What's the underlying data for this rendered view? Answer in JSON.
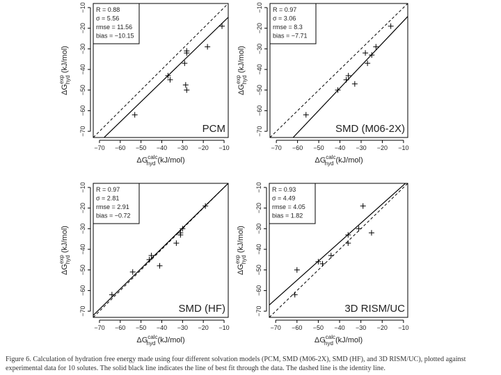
{
  "figure": {
    "caption": "Figure 6. Calculation of hydration free energy made using four different solvation models (PCM, SMD (M06-2X), SMD (HF), and 3D RISM/UC), plotted against experimental data for 10 solutes. The solid black line indicates the line of best fit through the data. The dashed line is the identity line.",
    "text_color": "#222222",
    "line_color": "#000000"
  },
  "chart_data": [
    {
      "type": "scatter",
      "name": "PCM",
      "label": "PCM",
      "xlabel": "ΔG calc hyd (kJ/mol)",
      "ylabel": "ΔG exp hyd (kJ/mol)",
      "xlabel_main": "ΔG",
      "xlabel_sup": "calc",
      "xlabel_sub": "hyd",
      "xlabel_unit": "(kJ/mol)",
      "ylabel_main": "ΔG",
      "ylabel_sup": "exp",
      "ylabel_sub": "hyd",
      "ylabel_unit": "(kJ/mol)",
      "xlim": [
        -73,
        -8
      ],
      "ylim": [
        -73,
        -8
      ],
      "xticks": [
        -70,
        -60,
        -50,
        -40,
        -30,
        -20,
        -10
      ],
      "yticks": [
        -70,
        -60,
        -50,
        -40,
        -30,
        -20,
        -10
      ],
      "stats": [
        "R = 0.88",
        "σ = 5.56",
        "rmse = 11.56",
        "bias = −10.15"
      ],
      "points": [
        {
          "x": -53,
          "y": -62
        },
        {
          "x": -36,
          "y": -45
        },
        {
          "x": -37,
          "y": -43
        },
        {
          "x": -28,
          "y": -50
        },
        {
          "x": -28.5,
          "y": -47.5
        },
        {
          "x": -29,
          "y": -37
        },
        {
          "x": -28,
          "y": -32
        },
        {
          "x": -28,
          "y": -31
        },
        {
          "x": -18,
          "y": -29
        },
        {
          "x": -11,
          "y": -19
        }
      ],
      "fit": [
        [
          -73,
          -78.1
        ],
        [
          -8,
          -14.7
        ]
      ]
    },
    {
      "type": "scatter",
      "name": "SMD (M06-2X)",
      "label": "SMD (M06-2X)",
      "xlabel": "ΔG calc hyd (kJ/mol)",
      "ylabel": "ΔG exp hyd (kJ/mol)",
      "xlabel_main": "ΔG",
      "xlabel_sup": "calc",
      "xlabel_sub": "hyd",
      "xlabel_unit": "(kJ/mol)",
      "ylabel_main": "ΔG",
      "ylabel_sup": "exp",
      "ylabel_sub": "hyd",
      "ylabel_unit": "(kJ/mol)",
      "xlim": [
        -73,
        -8
      ],
      "ylim": [
        -73,
        -8
      ],
      "xticks": [
        -70,
        -60,
        -50,
        -40,
        -30,
        -20,
        -10
      ],
      "yticks": [
        -70,
        -60,
        -50,
        -40,
        -30,
        -20,
        -10
      ],
      "stats": [
        "R = 0.97",
        "σ = 3.06",
        "rmse = 8.3",
        "bias = −7.71"
      ],
      "points": [
        {
          "x": -56,
          "y": -62
        },
        {
          "x": -41,
          "y": -50
        },
        {
          "x": -37,
          "y": -45
        },
        {
          "x": -36,
          "y": -43
        },
        {
          "x": -33,
          "y": -47
        },
        {
          "x": -28,
          "y": -32
        },
        {
          "x": -27,
          "y": -37
        },
        {
          "x": -25,
          "y": -33
        },
        {
          "x": -23,
          "y": -29
        },
        {
          "x": -16,
          "y": -19
        }
      ],
      "fit": [
        [
          -63,
          -74
        ],
        [
          -8,
          -14.3
        ]
      ]
    },
    {
      "type": "scatter",
      "name": "SMD (HF)",
      "label": "SMD (HF)",
      "xlabel": "ΔG calc hyd (kJ/mol)",
      "ylabel": "ΔG exp hyd (kJ/mol)",
      "xlabel_main": "ΔG",
      "xlabel_sup": "calc",
      "xlabel_sub": "hyd",
      "xlabel_unit": "(kJ/mol)",
      "ylabel_main": "ΔG",
      "ylabel_sup": "exp",
      "ylabel_sub": "hyd",
      "ylabel_unit": "(kJ/mol)",
      "xlim": [
        -73,
        -8
      ],
      "ylim": [
        -73,
        -8
      ],
      "xticks": [
        -70,
        -60,
        -50,
        -40,
        -30,
        -20,
        -10
      ],
      "yticks": [
        -70,
        -60,
        -50,
        -40,
        -30,
        -20,
        -10
      ],
      "stats": [
        "R = 0.97",
        "σ = 2.81",
        "rmse = 2.91",
        "bias = −0.72"
      ],
      "points": [
        {
          "x": -64,
          "y": -62
        },
        {
          "x": -54,
          "y": -51
        },
        {
          "x": -46,
          "y": -45
        },
        {
          "x": -45,
          "y": -43
        },
        {
          "x": -41,
          "y": -48
        },
        {
          "x": -33,
          "y": -37
        },
        {
          "x": -31,
          "y": -33
        },
        {
          "x": -31,
          "y": -32
        },
        {
          "x": -30,
          "y": -30
        },
        {
          "x": -19,
          "y": -19
        }
      ],
      "fit": [
        [
          -73,
          -72
        ],
        [
          -8,
          -8
        ]
      ]
    },
    {
      "type": "scatter",
      "name": "3D RISM/UC",
      "label": "3D RISM/UC",
      "xlabel": "ΔG calc hyd (kJ/mol)",
      "ylabel": "ΔG exp hyd (kJ/mol)",
      "xlabel_main": "ΔG",
      "xlabel_sup": "calc",
      "xlabel_sub": "hyd",
      "xlabel_unit": "(kJ/mol)",
      "ylabel_main": "ΔG",
      "ylabel_sup": "exp",
      "ylabel_sub": "hyd",
      "ylabel_unit": "(kJ/mol)",
      "xlim": [
        -73,
        -8
      ],
      "ylim": [
        -73,
        -8
      ],
      "xticks": [
        -70,
        -60,
        -50,
        -40,
        -30,
        -20,
        -10
      ],
      "yticks": [
        -70,
        -60,
        -50,
        -40,
        -30,
        -20,
        -10
      ],
      "stats": [
        "R = 0.93",
        "σ = 4.49",
        "rmse = 4.05",
        "bias = 1.82"
      ],
      "points": [
        {
          "x": -61,
          "y": -62
        },
        {
          "x": -60,
          "y": -50
        },
        {
          "x": -50,
          "y": -46
        },
        {
          "x": -48,
          "y": -47
        },
        {
          "x": -44,
          "y": -43
        },
        {
          "x": -36,
          "y": -37
        },
        {
          "x": -36,
          "y": -33
        },
        {
          "x": -31,
          "y": -30
        },
        {
          "x": -29,
          "y": -19
        },
        {
          "x": -25,
          "y": -32
        }
      ],
      "fit": [
        [
          -73,
          -67
        ],
        [
          -8,
          -7
        ]
      ]
    }
  ]
}
